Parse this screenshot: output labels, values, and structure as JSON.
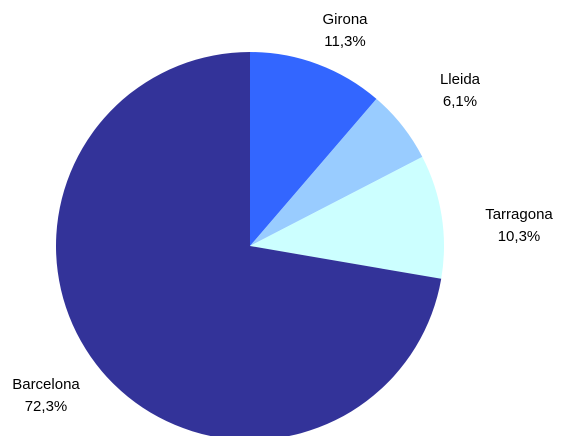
{
  "chart_data": {
    "type": "pie",
    "title": "",
    "slices": [
      {
        "label": "Girona",
        "value": 11.3,
        "value_label": "11,3%",
        "color": "#3366FF"
      },
      {
        "label": "Lleida",
        "value": 6.1,
        "value_label": "6,1%",
        "color": "#99CCFF"
      },
      {
        "label": "Tarragona",
        "value": 10.3,
        "value_label": "10,3%",
        "color": "#CCFFFF"
      },
      {
        "label": "Barcelona",
        "value": 72.3,
        "value_label": "72,3%",
        "color": "#333399"
      }
    ],
    "start_angle_deg": 0,
    "direction": "clockwise",
    "legend": "none"
  }
}
